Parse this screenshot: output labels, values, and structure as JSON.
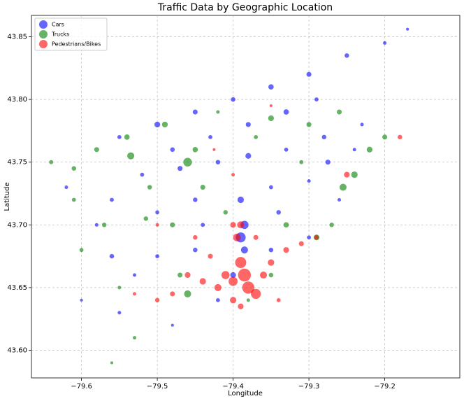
{
  "chart_data": {
    "type": "scatter",
    "title": "Traffic Data by Geographic Location",
    "x_label": "Longitude",
    "y_label": "Latitude",
    "xlim": [
      -79.666,
      -79.101
    ],
    "ylim": [
      43.578,
      43.867
    ],
    "xticks": [
      {
        "value": -79.6,
        "label": "−79.6"
      },
      {
        "value": -79.5,
        "label": "−79.5"
      },
      {
        "value": -79.4,
        "label": "−79.4"
      },
      {
        "value": -79.3,
        "label": "−79.3"
      },
      {
        "value": -79.2,
        "label": "−79.2"
      }
    ],
    "yticks": [
      {
        "value": 43.6,
        "label": "43.60"
      },
      43.65,
      {
        "value": 43.7,
        "label": "43.70"
      },
      43.75,
      {
        "value": 43.8,
        "label": "43.80"
      },
      43.85
    ],
    "grid": true,
    "legend": "upper left",
    "series": [
      {
        "name": "Cars",
        "color": "#0000ff",
        "x": [
          -79.55,
          -79.5,
          -79.45,
          -79.4,
          -79.35,
          -79.3,
          -79.25,
          -79.2,
          -79.17,
          -79.52,
          -79.47,
          -79.42,
          -79.38,
          -79.33,
          -79.28,
          -79.23,
          -79.58,
          -79.5,
          -79.45,
          -79.39,
          -79.35,
          -79.3,
          -79.385,
          -79.39,
          -79.385,
          -79.4,
          -79.45,
          -79.5,
          -79.56,
          -79.6,
          -79.55,
          -79.48,
          -79.42,
          -79.35,
          -79.3,
          -79.26,
          -79.38,
          -79.48,
          -79.43,
          -79.33,
          -79.29,
          -79.24,
          -79.62,
          -79.56,
          -79.53,
          -79.44,
          -79.34,
          -79.275
        ],
        "y": [
          43.77,
          43.78,
          43.79,
          43.8,
          43.81,
          43.82,
          43.835,
          43.845,
          43.856,
          43.74,
          43.745,
          43.75,
          43.755,
          43.76,
          43.77,
          43.78,
          43.7,
          43.71,
          43.72,
          43.72,
          43.73,
          43.735,
          43.7,
          43.69,
          43.68,
          43.66,
          43.68,
          43.675,
          43.675,
          43.64,
          43.63,
          43.62,
          43.64,
          43.68,
          43.69,
          43.72,
          43.78,
          43.76,
          43.77,
          43.79,
          43.8,
          43.76,
          43.73,
          43.72,
          43.66,
          43.7,
          43.71,
          43.75
        ],
        "sizes": [
          20,
          40,
          30,
          25,
          35,
          30,
          25,
          15,
          10,
          20,
          30,
          25,
          40,
          20,
          25,
          15,
          15,
          20,
          25,
          50,
          20,
          15,
          80,
          120,
          60,
          40,
          25,
          20,
          25,
          10,
          15,
          10,
          20,
          25,
          20,
          15,
          30,
          25,
          20,
          35,
          20,
          15,
          15,
          20,
          15,
          20,
          25,
          30
        ]
      },
      {
        "name": "Trucks",
        "color": "#008000",
        "x": [
          -79.64,
          -79.61,
          -79.58,
          -79.54,
          -79.535,
          -79.46,
          -79.49,
          -79.44,
          -79.35,
          -79.26,
          -79.24,
          -79.255,
          -79.22,
          -79.2,
          -79.57,
          -79.6,
          -79.55,
          -79.53,
          -79.56,
          -79.46,
          -79.47,
          -79.41,
          -79.33,
          -79.29,
          -79.27,
          -79.31,
          -79.48,
          -79.51,
          -79.45,
          -79.37,
          -79.42,
          -79.3,
          -79.35,
          -79.38,
          -79.61,
          -79.515
        ],
        "y": [
          43.75,
          43.745,
          43.76,
          43.77,
          43.755,
          43.75,
          43.78,
          43.73,
          43.785,
          43.79,
          43.74,
          43.73,
          43.76,
          43.77,
          43.7,
          43.68,
          43.65,
          43.61,
          43.59,
          43.645,
          43.66,
          43.71,
          43.7,
          43.69,
          43.7,
          43.75,
          43.7,
          43.73,
          43.76,
          43.77,
          43.79,
          43.78,
          43.66,
          43.64,
          43.72,
          43.705
        ],
        "sizes": [
          20,
          25,
          30,
          35,
          60,
          90,
          40,
          30,
          40,
          30,
          50,
          60,
          40,
          30,
          25,
          20,
          15,
          15,
          10,
          60,
          30,
          25,
          35,
          40,
          25,
          20,
          30,
          25,
          35,
          20,
          15,
          30,
          25,
          15,
          20,
          25
        ]
      },
      {
        "name": "Pedestrians/Bikes",
        "color": "#ff0000",
        "x": [
          -79.39,
          -79.395,
          -79.39,
          -79.385,
          -79.38,
          -79.37,
          -79.4,
          -79.41,
          -79.42,
          -79.44,
          -79.46,
          -79.48,
          -79.5,
          -79.36,
          -79.35,
          -79.33,
          -79.31,
          -79.29,
          -79.4,
          -79.39,
          -79.43,
          -79.45,
          -79.37,
          -79.4,
          -79.25,
          -79.18,
          -79.4,
          -79.425,
          -79.35,
          -79.5,
          -79.53,
          -79.34
        ],
        "y": [
          43.7,
          43.69,
          43.67,
          43.66,
          43.65,
          43.645,
          43.655,
          43.66,
          43.65,
          43.655,
          43.66,
          43.645,
          43.64,
          43.66,
          43.67,
          43.68,
          43.685,
          43.69,
          43.64,
          43.635,
          43.675,
          43.69,
          43.69,
          43.7,
          43.74,
          43.77,
          43.74,
          43.76,
          43.795,
          43.7,
          43.645,
          43.64
        ],
        "sizes": [
          60,
          70,
          150,
          200,
          180,
          120,
          100,
          80,
          60,
          50,
          40,
          30,
          25,
          60,
          50,
          40,
          30,
          25,
          50,
          40,
          30,
          25,
          30,
          40,
          40,
          25,
          15,
          10,
          10,
          15,
          15,
          20
        ]
      }
    ]
  }
}
